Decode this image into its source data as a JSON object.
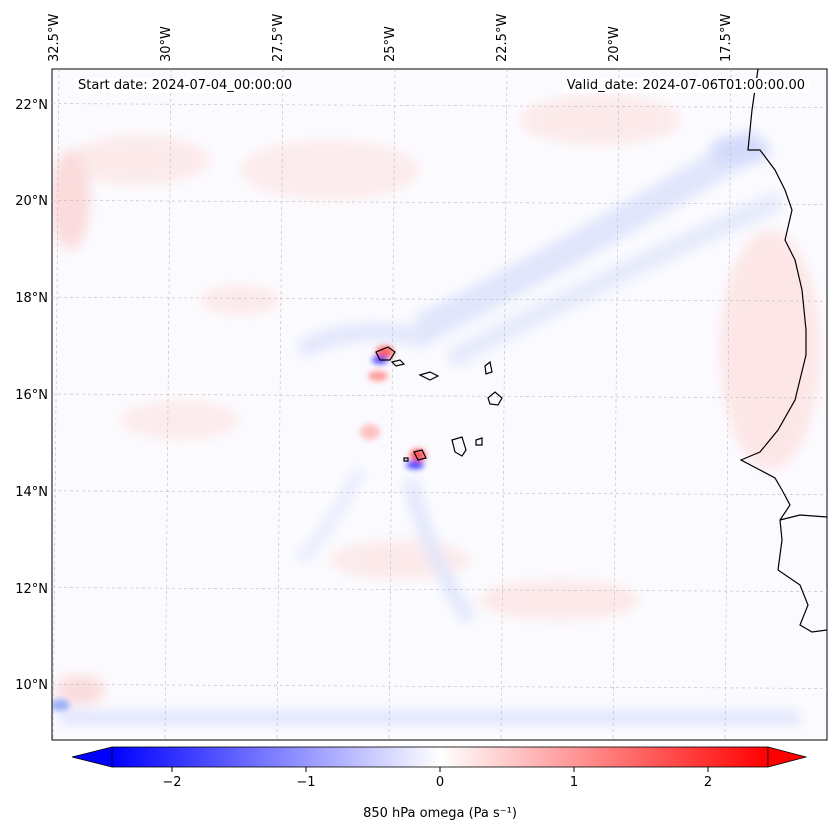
{
  "header": {
    "start_date": "Start date: 2024-07-04_00:00:00",
    "valid_date": "Valid_date: 2024-07-06T01:00:00.00"
  },
  "lon_ticks": [
    {
      "value": -32.5,
      "label": "32.5°W"
    },
    {
      "value": -30,
      "label": "30°W"
    },
    {
      "value": -27.5,
      "label": "27.5°W"
    },
    {
      "value": -25,
      "label": "25°W"
    },
    {
      "value": -22.5,
      "label": "22.5°W"
    },
    {
      "value": -20,
      "label": "20°W"
    },
    {
      "value": -17.5,
      "label": "17.5°W"
    }
  ],
  "lat_ticks": [
    {
      "value": 22,
      "label": "22°N"
    },
    {
      "value": 20,
      "label": "20°N"
    },
    {
      "value": 18,
      "label": "18°N"
    },
    {
      "value": 16,
      "label": "16°N"
    },
    {
      "value": 14,
      "label": "14°N"
    },
    {
      "value": 12,
      "label": "12°N"
    },
    {
      "value": 10,
      "label": "10°N"
    }
  ],
  "colorbar": {
    "label": "850 hPa omega (Pa s⁻¹)",
    "range": [
      -2.6,
      2.6
    ],
    "ticks": [
      {
        "value": -2,
        "label": "−2"
      },
      {
        "value": -1,
        "label": "−1"
      },
      {
        "value": 0,
        "label": "0"
      },
      {
        "value": 1,
        "label": "1"
      },
      {
        "value": 2,
        "label": "2"
      }
    ],
    "colors": {
      "negative": "#0000ff",
      "zero": "#ffffff",
      "positive": "#ff0000"
    }
  },
  "colors": {
    "coastline": "#000000",
    "gridline": "#bbbbbb"
  }
}
